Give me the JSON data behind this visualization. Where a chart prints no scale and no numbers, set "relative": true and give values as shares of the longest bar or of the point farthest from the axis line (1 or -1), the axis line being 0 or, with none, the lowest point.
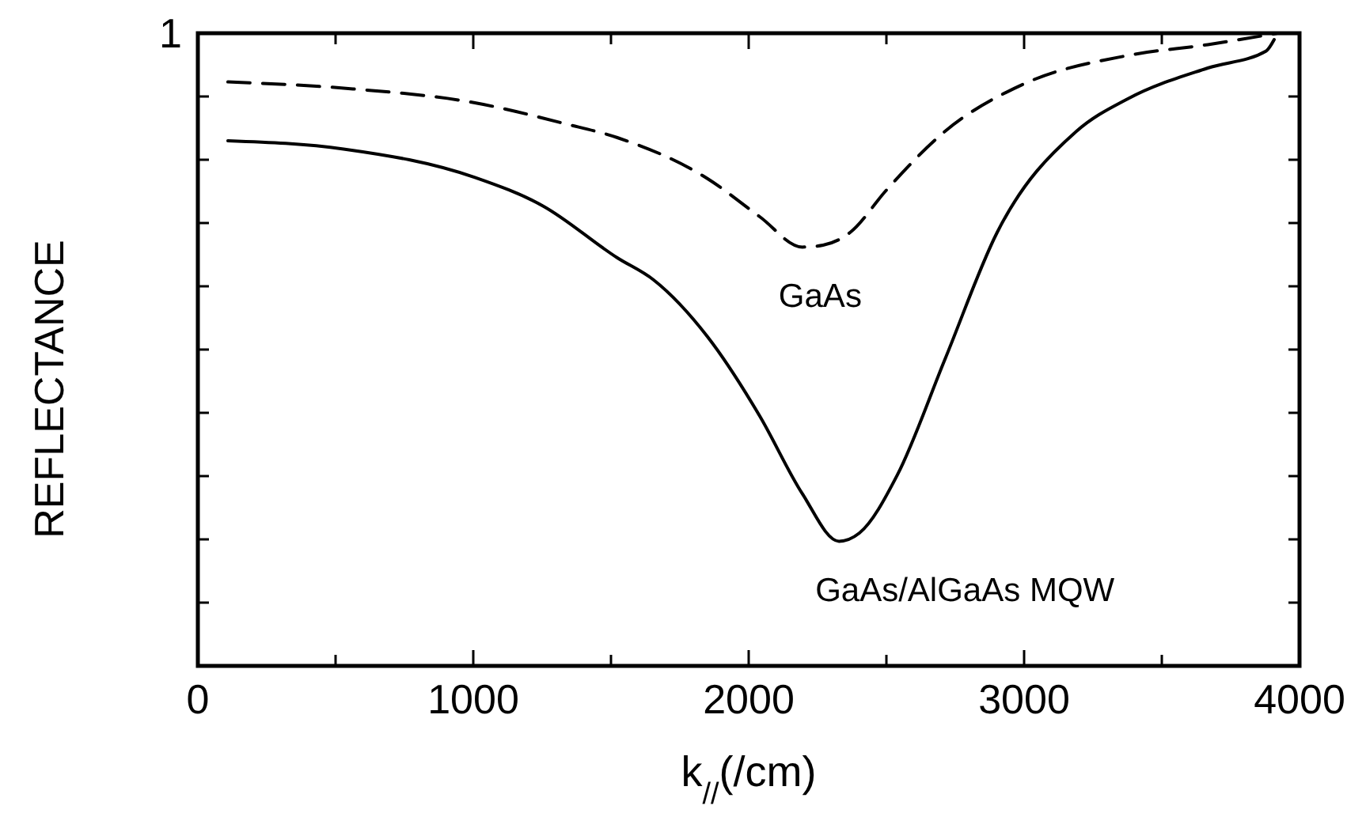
{
  "chart_data": {
    "type": "line",
    "xlabel": "k$_{//}$(/cm)",
    "ylabel": "REFLECTANCE",
    "xlim": [
      0,
      4000
    ],
    "xticks": [
      0,
      {
        "value": 500,
        "label": null
      },
      1000,
      {
        "value": 1500,
        "label": null
      },
      2000,
      {
        "value": 2500,
        "label": null
      },
      3000,
      {
        "value": 3500,
        "label": null
      },
      4000
    ],
    "relative": true,
    "annotations": [
      "1"
    ],
    "grid": false,
    "marker": "none",
    "series": [
      {
        "name": "GaAs",
        "color": "#000000",
        "line_style": "dashed",
        "x": [
          109,
          563,
          1006,
          1333,
          1523,
          1851,
          2040,
          2195,
          2270,
          2368,
          2500,
          2713,
          3000,
          3379,
          3667,
          3920
        ],
        "values": [
          0.923,
          0.912,
          0.89,
          0.857,
          0.835,
          0.77,
          0.71,
          0.662,
          0.665,
          0.685,
          0.752,
          0.845,
          0.92,
          0.965,
          0.982,
          1
        ]
      },
      {
        "name": "GaAs/AlGaAs MQW",
        "color": "#000000",
        "line_style": "solid",
        "x": [
          109,
          529,
          1006,
          1253,
          1523,
          1655,
          1851,
          2040,
          2195,
          2328,
          2402,
          2540,
          2713,
          2902,
          3190,
          3379,
          3667,
          3879,
          3908
        ],
        "values": [
          0.83,
          0.817,
          0.772,
          0.727,
          0.645,
          0.61,
          0.52,
          0.395,
          0.272,
          0.197,
          0.21,
          0.302,
          0.485,
          0.685,
          0.845,
          0.897,
          0.945,
          0.972,
          0.99
        ]
      }
    ]
  }
}
